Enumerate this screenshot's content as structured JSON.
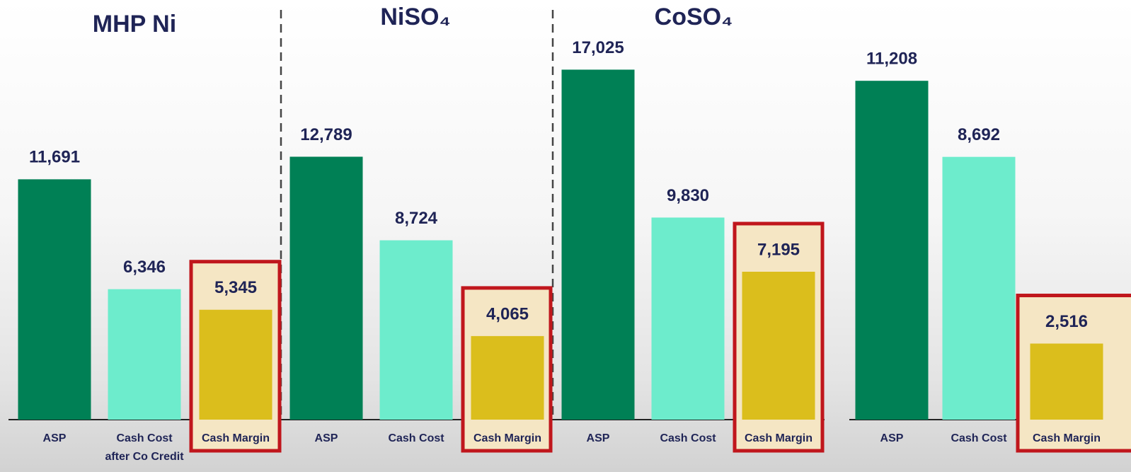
{
  "chart_data": [
    {
      "type": "bar",
      "title": "MHP Ni",
      "categories": [
        "ASP",
        "Cash Cost\nafter Co Credit",
        "Cash Margin"
      ],
      "values": [
        11691,
        6346,
        5345
      ],
      "value_labels": [
        "11,691",
        "6,346",
        "5,345"
      ],
      "colors": [
        "#008055",
        "#6deccc",
        "#dbbe1c"
      ],
      "ylim": [
        0,
        20000
      ]
    },
    {
      "type": "bar",
      "title": "NiSO₄",
      "categories": [
        "ASP",
        "Cash Cost",
        "Cash Margin"
      ],
      "values": [
        12789,
        8724,
        4065
      ],
      "value_labels": [
        "12,789",
        "8,724",
        "4,065"
      ],
      "colors": [
        "#008055",
        "#6deccc",
        "#dbbe1c"
      ],
      "ylim": [
        0,
        20000
      ]
    },
    {
      "type": "bar",
      "title": "CoSO₄",
      "categories": [
        "ASP",
        "Cash Cost",
        "Cash Margin"
      ],
      "values": [
        17025,
        9830,
        7195
      ],
      "value_labels": [
        "17,025",
        "9,830",
        "7,195"
      ],
      "colors": [
        "#008055",
        "#6deccc",
        "#dbbe1c"
      ],
      "ylim": [
        0,
        20000
      ]
    },
    {
      "type": "bar",
      "categories": [
        "ASP",
        "Cash Cost",
        "Cash Margin"
      ],
      "values": [
        11208,
        8692,
        2516
      ],
      "value_labels": [
        "11,208",
        "8,692",
        "2,516"
      ],
      "colors": [
        "#008055",
        "#6deccc",
        "#dbbe1c"
      ],
      "ylim": [
        0,
        13600
      ]
    }
  ]
}
